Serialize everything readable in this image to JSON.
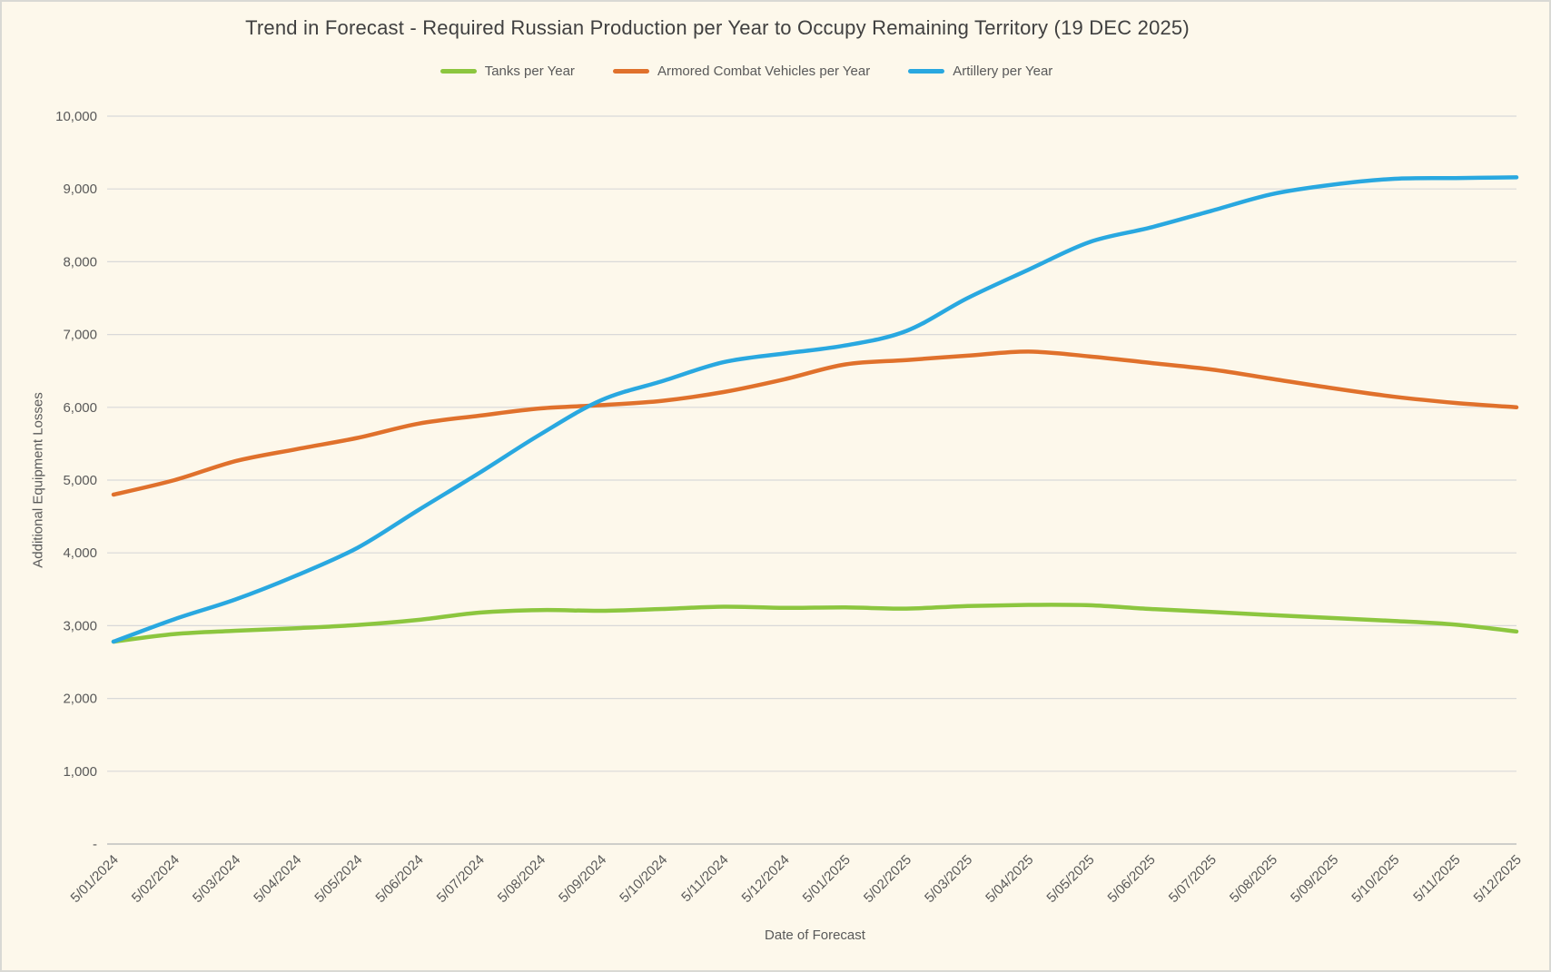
{
  "window": {
    "background_color": "#FDF8EB",
    "border_color": "#D9D9D4"
  },
  "chart_data": {
    "type": "line",
    "title": "Trend in Forecast - Required Russian Production per Year to Occupy Remaining Territory (19 DEC 2025)",
    "xlabel": "Date of Forecast",
    "ylabel": "Additional Equipment Losses",
    "ylim": [
      0,
      10000
    ],
    "ytick_step": 1000,
    "zero_tick_label": "-",
    "grid": "horizontal",
    "legend_position": "top",
    "categories": [
      "5/01/2024",
      "5/02/2024",
      "5/03/2024",
      "5/04/2024",
      "5/05/2024",
      "5/06/2024",
      "5/07/2024",
      "5/08/2024",
      "5/09/2024",
      "5/10/2024",
      "5/11/2024",
      "5/12/2024",
      "5/01/2025",
      "5/02/2025",
      "5/03/2025",
      "5/04/2025",
      "5/05/2025",
      "5/06/2025",
      "5/07/2025",
      "5/08/2025",
      "5/09/2025",
      "5/10/2025",
      "5/11/2025",
      "5/12/2025"
    ],
    "series": [
      {
        "name": "Tanks per Year",
        "color": "#8CC63F",
        "values": [
          2780,
          2885,
          2930,
          2965,
          3010,
          3080,
          3180,
          3215,
          3205,
          3230,
          3260,
          3245,
          3250,
          3235,
          3270,
          3285,
          3280,
          3230,
          3190,
          3145,
          3105,
          3065,
          3015,
          2920
        ]
      },
      {
        "name": "Armored Combat Vehicles per Year",
        "color": "#E0712C",
        "values": [
          4800,
          5000,
          5260,
          5425,
          5580,
          5775,
          5885,
          5985,
          6030,
          6090,
          6210,
          6385,
          6590,
          6650,
          6710,
          6765,
          6700,
          6610,
          6520,
          6390,
          6260,
          6145,
          6060,
          6000
        ]
      },
      {
        "name": "Artillery per Year",
        "color": "#29A8E0",
        "values": [
          2780,
          3090,
          3360,
          3690,
          4070,
          4590,
          5100,
          5630,
          6100,
          6360,
          6620,
          6740,
          6850,
          7050,
          7500,
          7890,
          8270,
          8470,
          8700,
          8930,
          9060,
          9140,
          9150,
          9160
        ]
      }
    ]
  }
}
